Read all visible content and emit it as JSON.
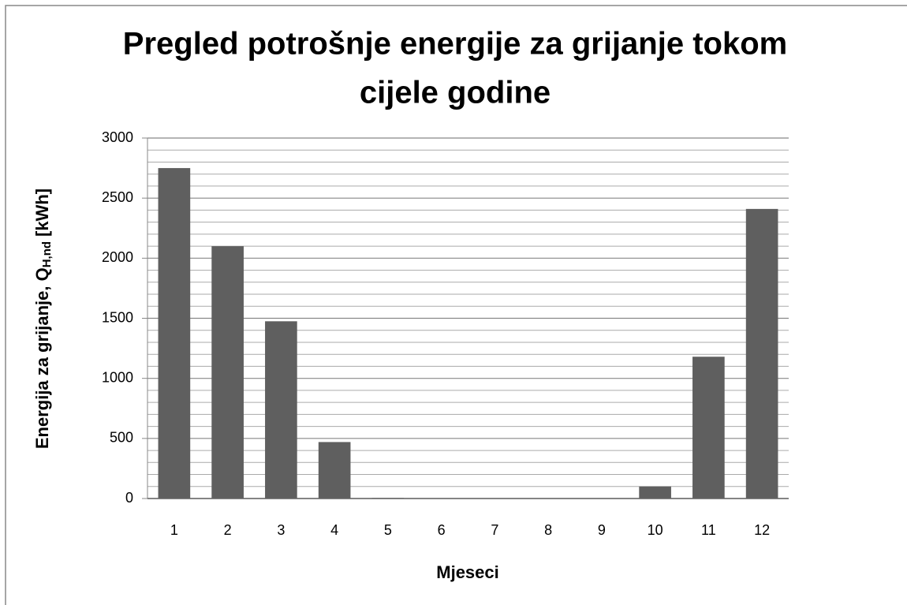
{
  "chart_data": {
    "type": "bar",
    "title": [
      "Pregled potrošnje energije za grijanje tokom",
      "cijele godine"
    ],
    "y_label": [
      "Energija za grijanje, Q",
      "H,nd",
      "[kWh]"
    ],
    "x_label": "Mjeseci",
    "categories": [
      "1",
      "2",
      "3",
      "4",
      "5",
      "6",
      "7",
      "8",
      "9",
      "10",
      "11",
      "12"
    ],
    "values": [
      2750,
      2100,
      1475,
      470,
      5,
      0,
      0,
      0,
      0,
      100,
      1180,
      2410
    ],
    "color": "#5f5f5f",
    "ylim": [
      0,
      3000
    ],
    "yticks": [
      0,
      500,
      1000,
      1500,
      2000,
      2500,
      3000
    ],
    "yminor_ticks": [
      100,
      200,
      300,
      400,
      600,
      700,
      800,
      900,
      1100,
      1200,
      1300,
      1400,
      1600,
      1700,
      1800,
      1900,
      2100,
      2200,
      2300,
      2400,
      2600,
      2700,
      2800,
      2900
    ],
    "grid": true
  }
}
